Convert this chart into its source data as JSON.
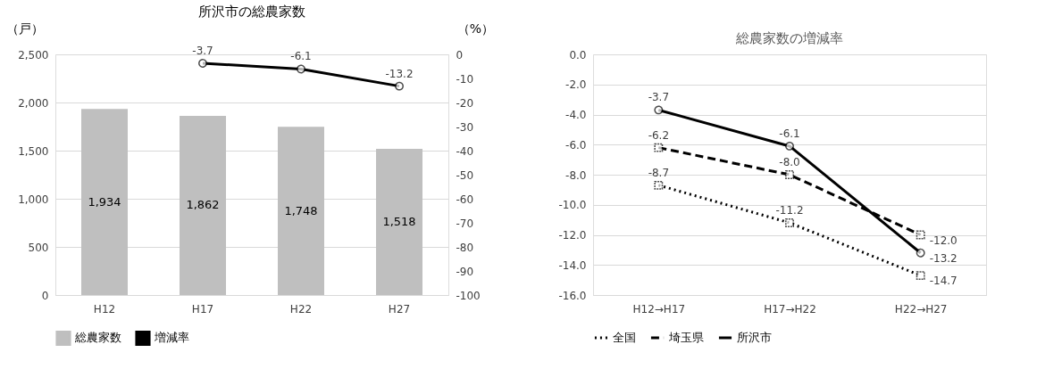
{
  "chart_data": [
    {
      "type": "bar",
      "title": "所沢市の総農家数",
      "ylabel": "（戸）",
      "y2label": "（%）",
      "categories": [
        "H12",
        "H17",
        "H22",
        "H27"
      ],
      "series": [
        {
          "name": "総農家数",
          "color": "#bfbfbf",
          "values": [
            1934,
            1862,
            1748,
            1518
          ],
          "value_labels": [
            "1,934",
            "1,862",
            "1,748",
            "1,518"
          ]
        },
        {
          "name": "増減率",
          "type": "line",
          "axis": "y2",
          "color": "#000000",
          "marker": "circle",
          "line_style": "solid",
          "values": [
            null,
            -3.7,
            -6.1,
            -13.2
          ],
          "value_labels": [
            null,
            "-3.7",
            "-6.1",
            "-13.2"
          ]
        }
      ],
      "ylim": [
        0,
        2500
      ],
      "yticks": [
        0,
        500,
        {
          "value": 1000,
          "label": "1,000"
        },
        {
          "value": 1500,
          "label": "1,500"
        },
        {
          "value": 2000,
          "label": "2,000"
        },
        {
          "value": 2500,
          "label": "2,500"
        }
      ],
      "y2lim": [
        -100,
        0
      ],
      "y2ticks": [
        -100,
        -90,
        -80,
        -70,
        -60,
        -50,
        -40,
        -30,
        -20,
        -10,
        0
      ],
      "grid": "y",
      "legend": "bottom"
    },
    {
      "type": "line",
      "title": "総農家数の増減率",
      "categories": [
        "H12→H17",
        "H17→H22",
        "H22→H27"
      ],
      "series": [
        {
          "name": "全国",
          "color": "#000000",
          "line_style": "dotted",
          "marker": "square",
          "values": [
            -8.7,
            -11.2,
            -14.7
          ],
          "value_labels": [
            "-8.7",
            "-11.2",
            "-14.7"
          ]
        },
        {
          "name": "埼玉県",
          "color": "#000000",
          "line_style": "dashed",
          "marker": "square",
          "values": [
            -6.2,
            -8.0,
            -12.0
          ],
          "value_labels": [
            "-6.2",
            "-8.0",
            "-12.0"
          ]
        },
        {
          "name": "所沢市",
          "color": "#000000",
          "line_style": "solid",
          "marker": "circle",
          "values": [
            -3.7,
            -6.1,
            -13.2
          ],
          "value_labels": [
            "-3.7",
            "-6.1",
            "-13.2"
          ]
        }
      ],
      "ylim": [
        -16,
        0
      ],
      "yticks": [
        {
          "value": -16,
          "label": "-16.0"
        },
        {
          "value": -14,
          "label": "-14.0"
        },
        {
          "value": -12,
          "label": "-12.0"
        },
        {
          "value": -10,
          "label": "-10.0"
        },
        {
          "value": -8,
          "label": "-8.0"
        },
        {
          "value": -6,
          "label": "-6.0"
        },
        {
          "value": -4,
          "label": "-4.0"
        },
        {
          "value": -2,
          "label": "-2.0"
        },
        {
          "value": 0,
          "label": "0.0"
        }
      ],
      "grid": "y",
      "legend": "bottom"
    }
  ]
}
